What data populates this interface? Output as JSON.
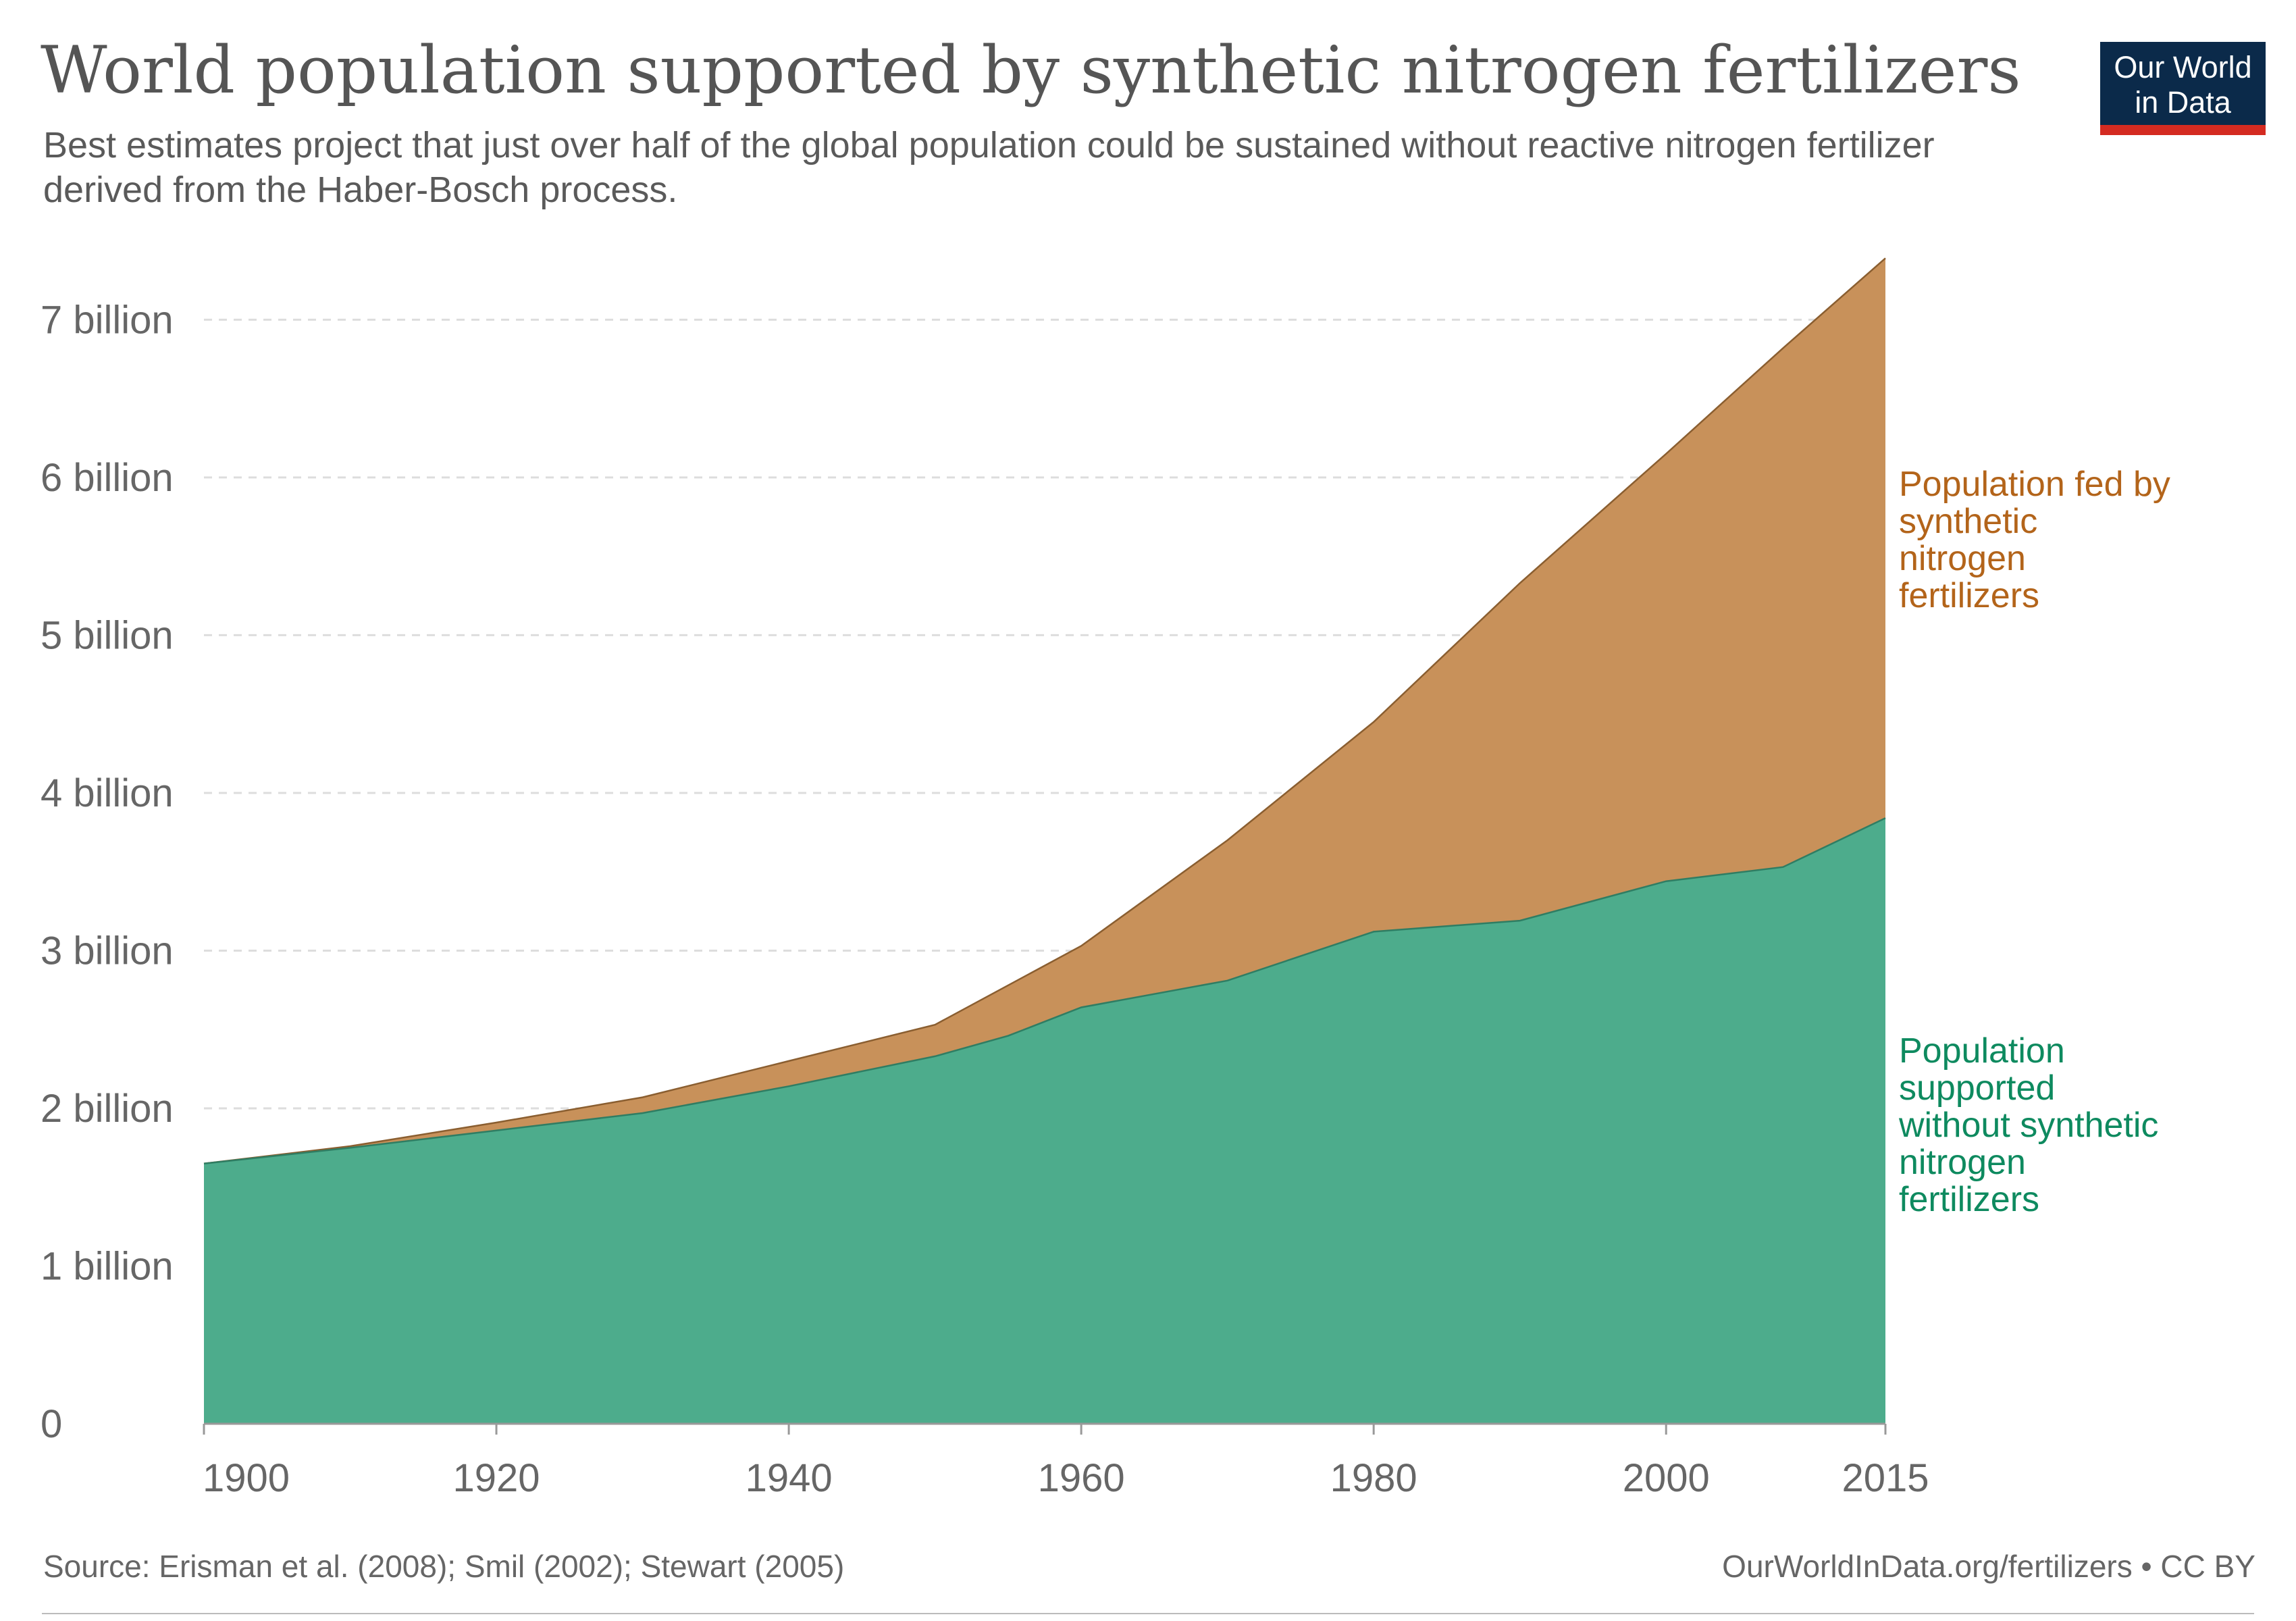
{
  "header": {
    "title": "World population supported by synthetic nitrogen fertilizers",
    "subtitle": "Best estimates project that just over half of the global population could be sustained without reactive nitrogen fertilizer derived from the Haber-Bosch process."
  },
  "logo": {
    "line1": "Our World",
    "line2": "in Data"
  },
  "footer": {
    "source": "Source: Erisman et al. (2008); Smil (2002); Stewart (2005)",
    "credit": "OurWorldInData.org/fertilizers • CC BY"
  },
  "colors": {
    "without": "#4dac8c",
    "without_label": "#0e8a5f",
    "fed": "#c8915a",
    "fed_label": "#b3641a",
    "grid": "#dddddd",
    "tick_text": "#666666",
    "logo_bg": "#0b2a4a",
    "logo_bar": "#d42b21"
  },
  "chart_data": {
    "type": "area",
    "stacked": true,
    "x": [
      1900,
      1910,
      1920,
      1930,
      1940,
      1950,
      1955,
      1960,
      1970,
      1980,
      1990,
      2000,
      2008,
      2015
    ],
    "series": [
      {
        "name": "Population supported without synthetic nitrogen fertilizers",
        "label_lines": [
          "Population",
          "supported",
          "without synthetic",
          "nitrogen",
          "fertilizers"
        ],
        "values": [
          1.65,
          1.75,
          1.86,
          1.97,
          2.14,
          2.33,
          2.46,
          2.64,
          2.81,
          3.12,
          3.19,
          3.44,
          3.53,
          3.84
        ]
      },
      {
        "name": "Population fed by synthetic nitrogen fertilizers",
        "label_lines": [
          "Population fed by",
          "synthetic",
          "nitrogen",
          "fertilizers"
        ],
        "values": [
          0.0,
          0.01,
          0.05,
          0.1,
          0.16,
          0.2,
          0.32,
          0.39,
          0.89,
          1.33,
          2.14,
          2.71,
          3.29,
          3.55
        ]
      }
    ],
    "xlim": [
      1900,
      2015
    ],
    "ylim": [
      0,
      7.4
    ],
    "yticks": [
      0,
      1,
      2,
      3,
      4,
      5,
      6,
      7
    ],
    "ytick_labels": [
      "0",
      "1 billion",
      "2 billion",
      "3 billion",
      "4 billion",
      "5 billion",
      "6 billion",
      "7 billion"
    ],
    "xticks": [
      1900,
      1920,
      1940,
      1960,
      1980,
      2000,
      2015
    ],
    "xtick_labels": [
      "1900",
      "1920",
      "1940",
      "1960",
      "1980",
      "2000",
      "2015"
    ],
    "grid": true,
    "legend": "inline-right"
  }
}
